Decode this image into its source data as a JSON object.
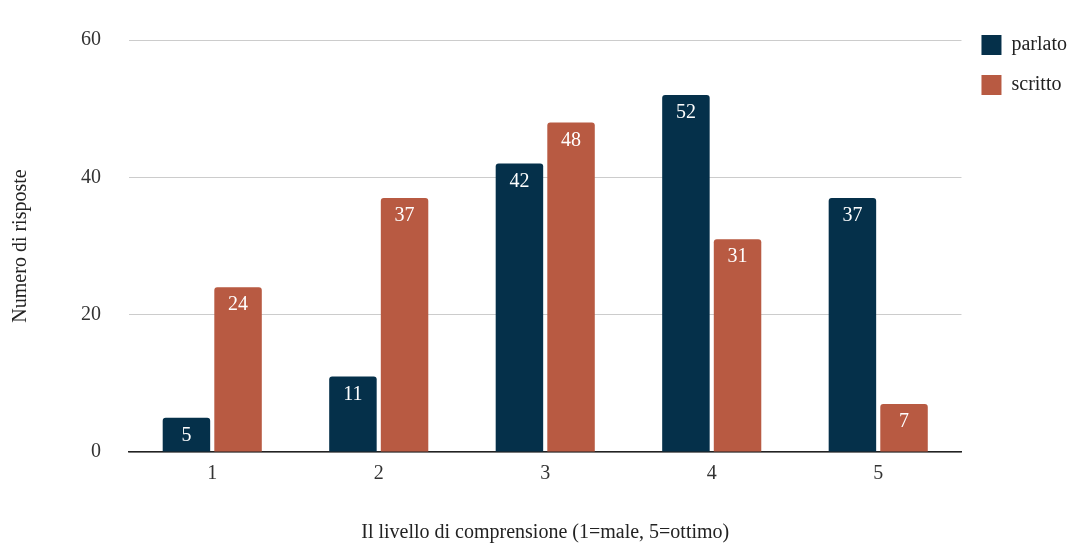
{
  "chart_data": {
    "type": "bar",
    "xlabel": "Il livello di comprensione (1=male, 5=ottimo)",
    "ylabel": "Numero di risposte",
    "categories": [
      "1",
      "2",
      "3",
      "4",
      "5"
    ],
    "series": [
      {
        "name": "parlato",
        "color": "#05304a",
        "values": [
          5,
          11,
          42,
          52,
          37
        ]
      },
      {
        "name": "scritto",
        "color": "#b85a42",
        "values": [
          24,
          37,
          48,
          31,
          7
        ]
      }
    ],
    "ylim": [
      0,
      60
    ],
    "yticks": [
      0,
      20,
      40,
      60
    ],
    "grid": "y",
    "legend": "top right",
    "data_labels": true
  }
}
